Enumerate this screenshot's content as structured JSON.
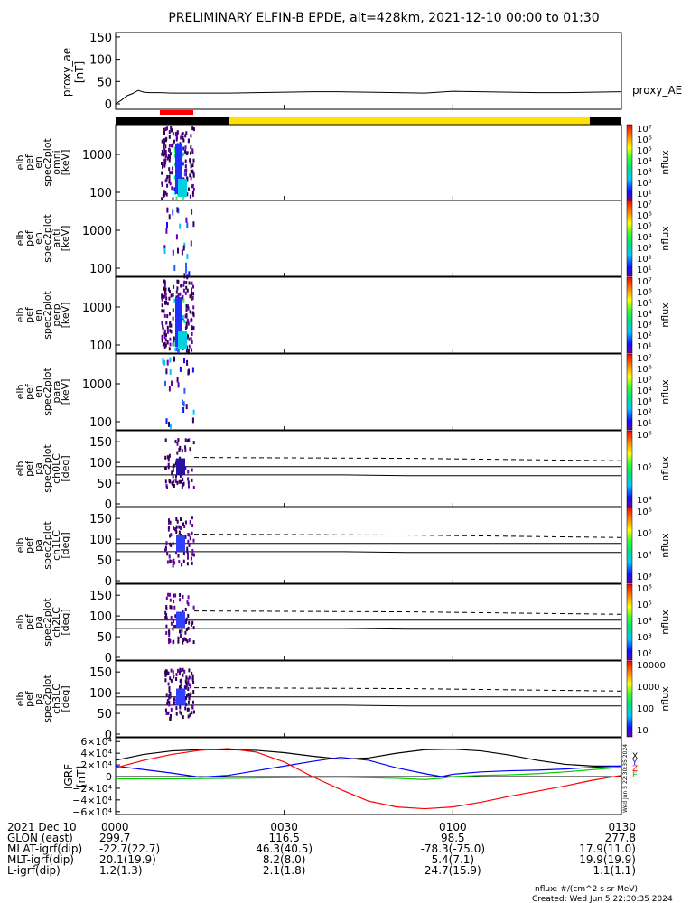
{
  "title": "PRELIMINARY ELFIN-B EPDE, alt=428km, 2021-12-10 00:00 to 01:30",
  "colors": {
    "state_bar_black": "#000000",
    "state_bar_yellow": "#ffe000",
    "red_marker": "#ff0000",
    "igrf_x": "#000000",
    "igrf_y": "#0000ff",
    "igrf_z": "#ff0000",
    "igrf_e": "#00cc00"
  },
  "panels": {
    "proxy_ae": {
      "ylabel": "proxy_ae\n[nT]",
      "yticks": [
        "150",
        "100",
        "50",
        "0"
      ],
      "legend": "proxy_AE"
    },
    "spec_panels": [
      {
        "ylabel": [
          "elb",
          "pef",
          "en",
          "spec2plot",
          "omni",
          "[keV]"
        ],
        "yticks": [
          "1000",
          "100"
        ],
        "cbar_ticks": [
          "10⁷",
          "10⁶",
          "10⁵",
          "10⁴",
          "10³",
          "10²",
          "10¹"
        ],
        "cbar_label": "nflux"
      },
      {
        "ylabel": [
          "elb",
          "pef",
          "en",
          "spec2plot",
          "anti",
          "[keV]"
        ],
        "yticks": [
          "1000",
          "100"
        ],
        "cbar_ticks": [
          "10⁷",
          "10⁶",
          "10⁵",
          "10⁴",
          "10³",
          "10²",
          "10¹"
        ],
        "cbar_label": "nflux"
      },
      {
        "ylabel": [
          "elb",
          "pef",
          "en",
          "spec2plot",
          "perp",
          "[keV]"
        ],
        "yticks": [
          "1000",
          "100"
        ],
        "cbar_ticks": [
          "10⁷",
          "10⁶",
          "10⁵",
          "10⁴",
          "10³",
          "10²",
          "10¹"
        ],
        "cbar_label": "nflux"
      },
      {
        "ylabel": [
          "elb",
          "pef",
          "en",
          "spec2plot",
          "para",
          "[keV]"
        ],
        "yticks": [
          "1000",
          "100"
        ],
        "cbar_ticks": [
          "10⁷",
          "10⁶",
          "10⁵",
          "10⁴",
          "10³",
          "10²",
          "10¹"
        ],
        "cbar_label": "nflux"
      }
    ],
    "pa_panels": [
      {
        "ylabel": [
          "elb",
          "pef",
          "pa",
          "spec2plot",
          "ch0LC",
          "[deg]"
        ],
        "yticks": [
          "150",
          "100",
          "50",
          "0"
        ],
        "cbar_ticks": [
          "10⁶",
          "10⁵",
          "10⁴"
        ],
        "cbar_label": "nflux"
      },
      {
        "ylabel": [
          "elb",
          "pef",
          "pa",
          "spec2plot",
          "ch1LC",
          "[deg]"
        ],
        "yticks": [
          "150",
          "100",
          "50",
          "0"
        ],
        "cbar_ticks": [
          "10⁶",
          "10⁵",
          "10⁴",
          "10³"
        ],
        "cbar_label": "nflux"
      },
      {
        "ylabel": [
          "elb",
          "pef",
          "pa",
          "spec2plot",
          "ch2LC",
          "[deg]"
        ],
        "yticks": [
          "150",
          "100",
          "50",
          "0"
        ],
        "cbar_ticks": [
          "10⁶",
          "10⁵",
          "10⁴",
          "10³",
          "10²"
        ],
        "cbar_label": "nflux"
      },
      {
        "ylabel": [
          "elb",
          "pef",
          "pa",
          "spec2plot",
          "ch3LC",
          "[deg]"
        ],
        "yticks": [
          "150",
          "100",
          "50",
          "0"
        ],
        "cbar_ticks": [
          "10000",
          "1000",
          "100",
          "10"
        ],
        "cbar_label": "nflux"
      }
    ],
    "igrf": {
      "ylabel": "IGRF\n[nT]",
      "yticks": [
        "6×10⁴",
        "4×10⁴",
        "2×10⁴",
        "0",
        "−2×10⁴",
        "−4×10⁴",
        "−6×10⁴"
      ],
      "legend": [
        "X",
        "Y",
        "Z",
        "E"
      ],
      "stamp": "Wed Jun  5 22:30:35 2024"
    }
  },
  "ephemeris": {
    "row_labels": [
      "2021 Dec 10",
      "GLON (east)",
      "MLAT-igrf(dip)",
      "MLT-igrf(dip)",
      "L-igrf(dip)"
    ],
    "columns": [
      {
        "time": "0000",
        "values": [
          "299.7",
          "-22.7(22.7)",
          "20.1(19.9)",
          "1.2(1.3)"
        ]
      },
      {
        "time": "0030",
        "values": [
          "116.5",
          "46.3(40.5)",
          "8.2(8.0)",
          "2.1(1.8)"
        ]
      },
      {
        "time": "0100",
        "values": [
          "98.5",
          "-78.3(-75.0)",
          "5.4(7.1)",
          "24.7(15.9)"
        ]
      },
      {
        "time": "0130",
        "values": [
          "277.8",
          "17.9(11.0)",
          "19.9(19.9)",
          "1.1(1.1)"
        ]
      }
    ]
  },
  "footer": {
    "units": "nflux: #/(cm^2 s sr MeV)",
    "created": "Created: Wed Jun  5 22:30:35 2024"
  },
  "chart_data": {
    "type": "line",
    "title": "PRELIMINARY ELFIN-B EPDE, alt=428km, 2021-12-10 00:00 to 01:30",
    "x_range_min": [
      0,
      90
    ],
    "xticks": [
      "0000",
      "0030",
      "0100",
      "0130"
    ],
    "series": [
      {
        "name": "proxy_AE",
        "panel": "proxy_ae",
        "ylim": [
          0,
          160
        ],
        "x": [
          0,
          1,
          2,
          3,
          4,
          5,
          6,
          8,
          10,
          15,
          20,
          25,
          30,
          35,
          40,
          45,
          50,
          55,
          60,
          65,
          70,
          75,
          80,
          85,
          90
        ],
        "y": [
          0,
          8,
          18,
          23,
          30,
          26,
          25,
          25,
          24,
          24,
          24,
          25,
          26,
          27,
          27,
          26,
          25,
          24,
          28,
          27,
          26,
          25,
          25,
          26,
          27
        ]
      },
      {
        "name": "X",
        "panel": "igrf",
        "ylim": [
          -65000,
          65000
        ],
        "x": [
          0,
          5,
          10,
          15,
          20,
          25,
          30,
          35,
          40,
          45,
          50,
          55,
          60,
          65,
          70,
          75,
          80,
          85,
          90
        ],
        "y": [
          28000,
          38000,
          44000,
          46000,
          46000,
          45000,
          41000,
          35000,
          30000,
          32000,
          40000,
          46000,
          47000,
          44000,
          37000,
          28000,
          21000,
          18000,
          18000
        ]
      },
      {
        "name": "Y",
        "panel": "igrf",
        "ylim": [
          -65000,
          65000
        ],
        "x": [
          0,
          5,
          10,
          15,
          20,
          25,
          30,
          35,
          40,
          45,
          50,
          55,
          58,
          60,
          65,
          70,
          75,
          80,
          85,
          90
        ],
        "y": [
          18000,
          12000,
          6000,
          -1000,
          2000,
          10000,
          18000,
          26000,
          33000,
          28000,
          15000,
          5000,
          0,
          4000,
          8000,
          10000,
          11000,
          13000,
          16000,
          18000
        ]
      },
      {
        "name": "Z",
        "panel": "igrf",
        "ylim": [
          -65000,
          65000
        ],
        "x": [
          0,
          5,
          10,
          15,
          20,
          25,
          30,
          35,
          40,
          45,
          50,
          55,
          60,
          65,
          70,
          75,
          80,
          85,
          90
        ],
        "y": [
          15000,
          28000,
          38000,
          45000,
          48000,
          42000,
          25000,
          0,
          -22000,
          -42000,
          -52000,
          -55000,
          -52000,
          -44000,
          -34000,
          -25000,
          -16000,
          -6000,
          2000
        ]
      },
      {
        "name": "E",
        "panel": "igrf",
        "ylim": [
          -65000,
          65000
        ],
        "x": [
          0,
          10,
          20,
          30,
          40,
          50,
          55,
          58,
          60,
          65,
          70,
          75,
          80,
          85,
          90
        ],
        "y": [
          -4000,
          -4000,
          -3000,
          -2000,
          -1000,
          -3000,
          -5000,
          -3000,
          0,
          2000,
          3000,
          5000,
          8000,
          12000,
          16000
        ]
      }
    ]
  }
}
